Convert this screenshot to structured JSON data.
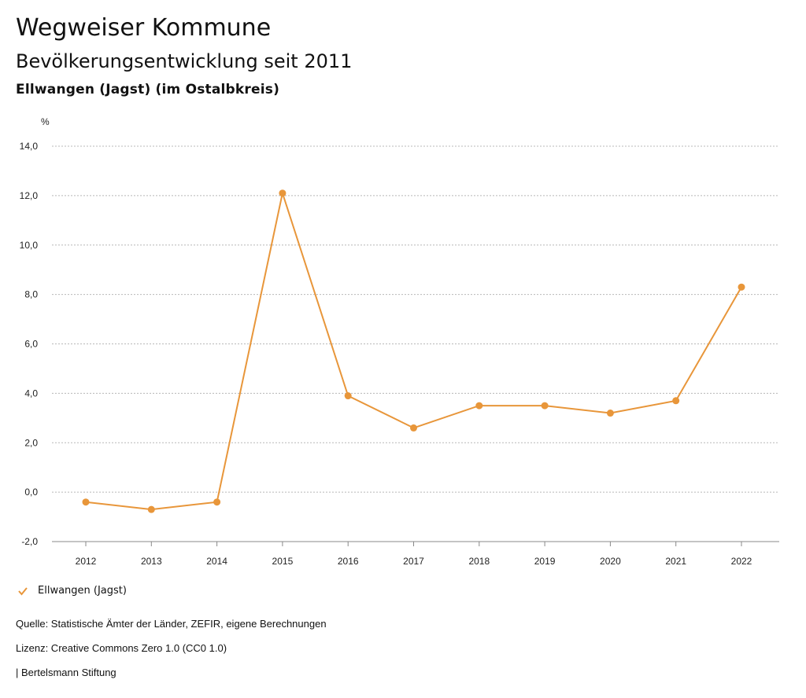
{
  "header": {
    "title": "Wegweiser Kommune",
    "subtitle": "Bevölkerungsentwicklung seit 2011",
    "region": "Ellwangen (Jagst) (im Ostalbkreis)"
  },
  "chart_data": {
    "type": "line",
    "unit_label": "%",
    "x": [
      "2012",
      "2013",
      "2014",
      "2015",
      "2016",
      "2017",
      "2018",
      "2019",
      "2020",
      "2021",
      "2022"
    ],
    "series": [
      {
        "name": "Ellwangen (Jagst)",
        "color": "#e8963a",
        "values": [
          -0.4,
          -0.7,
          -0.4,
          12.1,
          3.9,
          2.6,
          3.5,
          3.5,
          3.2,
          3.7,
          8.3
        ]
      }
    ],
    "yticks": [
      "14,0",
      "12,0",
      "10,0",
      "8,0",
      "6,0",
      "4,0",
      "2,0",
      "0,0",
      "-2,0"
    ],
    "ylim": [
      -2,
      14
    ],
    "grid": true,
    "legend_position": "bottom-left"
  },
  "footer": {
    "source": "Quelle: Statistische Ämter der Länder, ZEFIR, eigene Berechnungen",
    "license": "Lizenz: Creative Commons Zero 1.0 (CC0 1.0)",
    "publisher": "| Bertelsmann Stiftung"
  }
}
